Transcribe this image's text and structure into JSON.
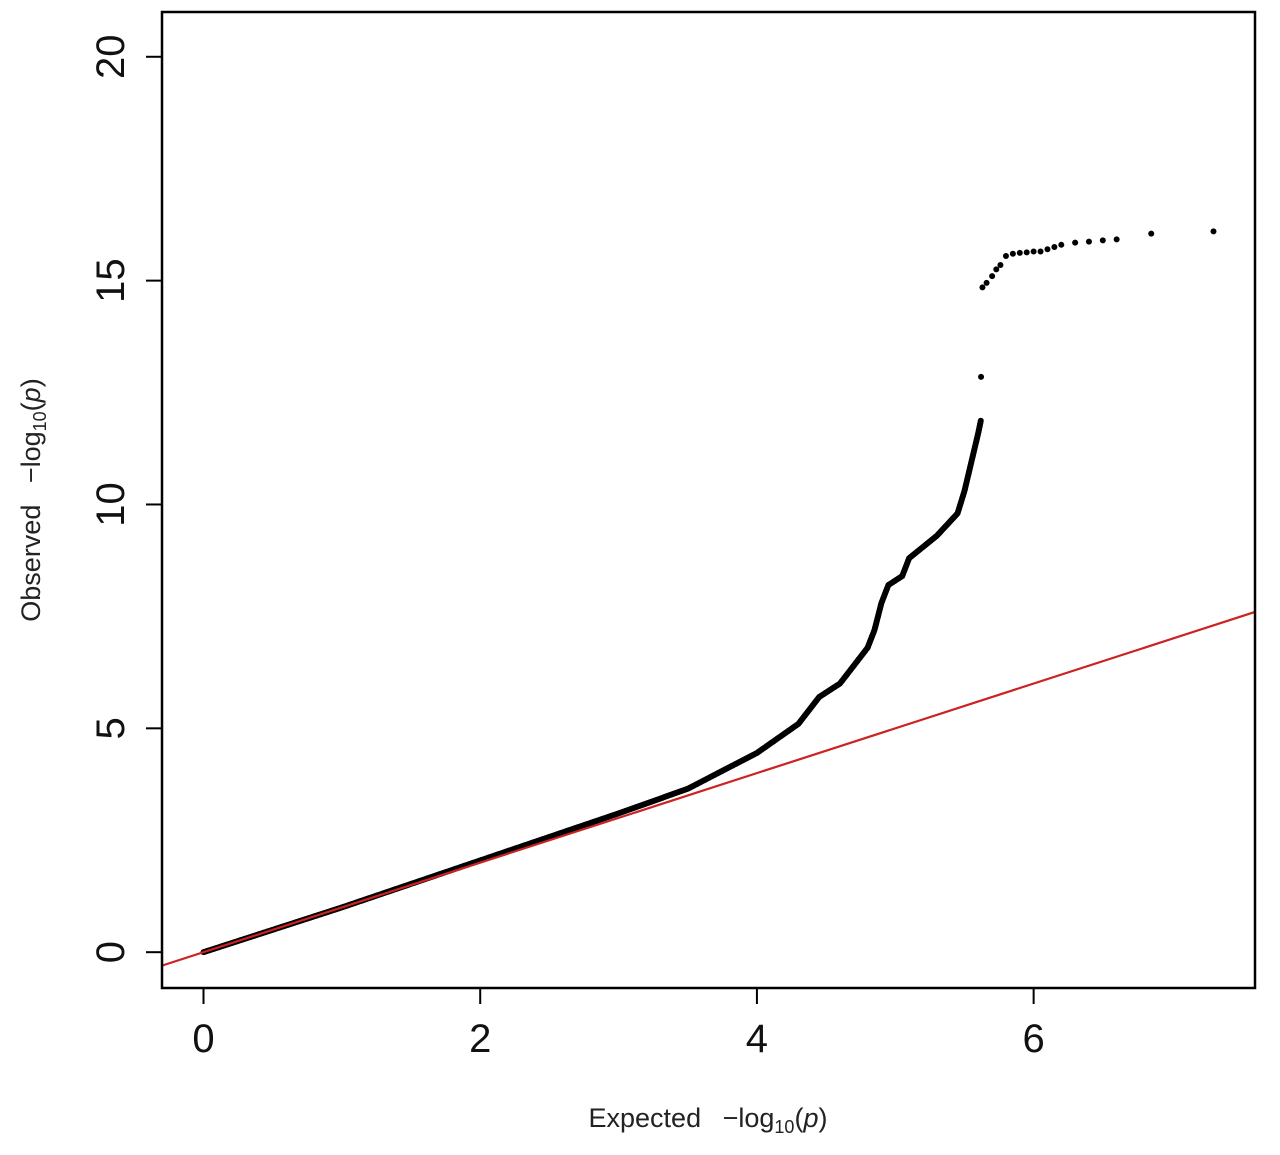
{
  "chart_data": {
    "type": "scatter",
    "title": "",
    "xlabel": {
      "prefix": "Expected",
      "minus_log": "−log",
      "sub": "10",
      "open": "(",
      "var": "p",
      "close": ")"
    },
    "ylabel": {
      "prefix": "Observed",
      "minus_log": "−log",
      "sub": "10",
      "open": "(",
      "var": "p",
      "close": ")"
    },
    "xlim": [
      -0.3,
      7.6
    ],
    "ylim": [
      -0.8,
      21.0
    ],
    "x_ticks": [
      0,
      2,
      4,
      6
    ],
    "y_ticks": [
      0,
      5,
      10,
      15,
      20
    ],
    "x_tick_labels": [
      "0",
      "2",
      "4",
      "6"
    ],
    "y_tick_labels": [
      "0",
      "5",
      "10",
      "15",
      "20"
    ],
    "grid": false,
    "colors": {
      "points": "#000000",
      "reference_line": "#cc2222",
      "frame": "#000000"
    },
    "reference_line": {
      "name": "",
      "intercept": 0,
      "slope": 1
    },
    "curve_anchors": [
      [
        0.0,
        0.0
      ],
      [
        1.0,
        1.0
      ],
      [
        2.0,
        2.05
      ],
      [
        3.0,
        3.1
      ],
      [
        3.5,
        3.65
      ],
      [
        4.0,
        4.45
      ],
      [
        4.3,
        5.1
      ],
      [
        4.45,
        5.7
      ],
      [
        4.6,
        6.0
      ],
      [
        4.8,
        6.8
      ],
      [
        4.85,
        7.2
      ],
      [
        4.9,
        7.8
      ],
      [
        4.95,
        8.2
      ],
      [
        5.05,
        8.4
      ],
      [
        5.1,
        8.8
      ],
      [
        5.3,
        9.3
      ],
      [
        5.45,
        9.8
      ],
      [
        5.5,
        10.3
      ],
      [
        5.6,
        11.6
      ],
      [
        5.62,
        11.9
      ]
    ],
    "isolated_points": [
      [
        5.62,
        12.85
      ],
      [
        5.63,
        14.85
      ],
      [
        5.66,
        14.95
      ],
      [
        5.7,
        15.1
      ],
      [
        5.73,
        15.25
      ],
      [
        5.76,
        15.35
      ],
      [
        5.8,
        15.55
      ],
      [
        5.85,
        15.6
      ],
      [
        5.9,
        15.62
      ],
      [
        5.95,
        15.63
      ],
      [
        6.0,
        15.65
      ],
      [
        6.05,
        15.65
      ],
      [
        6.1,
        15.7
      ],
      [
        6.15,
        15.75
      ],
      [
        6.2,
        15.8
      ],
      [
        6.3,
        15.85
      ],
      [
        6.4,
        15.87
      ],
      [
        6.5,
        15.9
      ],
      [
        6.6,
        15.92
      ],
      [
        6.85,
        16.05
      ],
      [
        7.3,
        16.1
      ]
    ]
  }
}
